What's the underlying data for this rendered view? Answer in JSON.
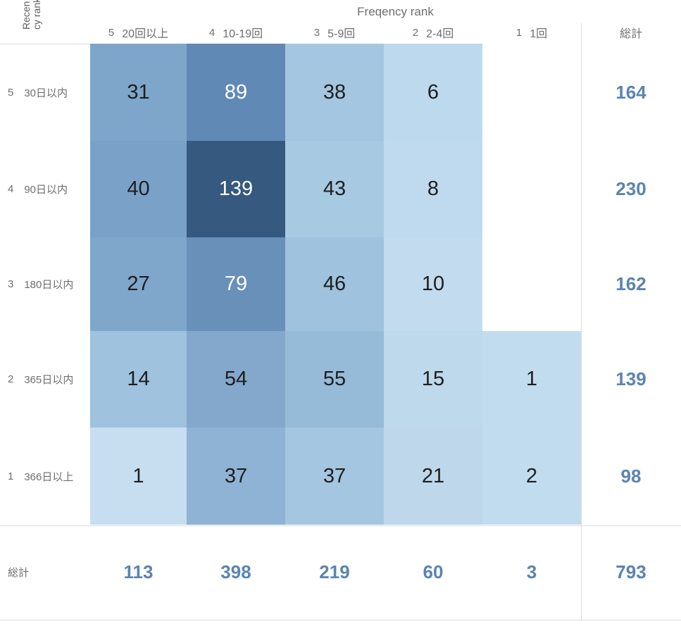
{
  "chart_data": {
    "type": "heatmap",
    "title": "Freqency rank",
    "row_axis_label": "Recency rank",
    "totals_label": "総計",
    "legend_position": "none",
    "grid": false,
    "columns": [
      {
        "rank": "5",
        "label": "20回以上"
      },
      {
        "rank": "4",
        "label": "10-19回"
      },
      {
        "rank": "3",
        "label": "5-9回"
      },
      {
        "rank": "2",
        "label": "2-4回"
      },
      {
        "rank": "1",
        "label": "1回"
      }
    ],
    "rows": [
      {
        "rank": "5",
        "label": "30日以内",
        "cells": [
          {
            "v": 31,
            "c": "#7ea6cb"
          },
          {
            "v": 89,
            "c": "#6089b6"
          },
          {
            "v": 38,
            "c": "#a4c6e1"
          },
          {
            "v": 6,
            "c": "#bcd9ee"
          },
          null
        ],
        "total": 164
      },
      {
        "rank": "4",
        "label": "90日以内",
        "cells": [
          {
            "v": 40,
            "c": "#7aa2c8"
          },
          {
            "v": 139,
            "c": "#35597f"
          },
          {
            "v": 43,
            "c": "#a8c9e2"
          },
          {
            "v": 8,
            "c": "#bfdaee"
          },
          null
        ],
        "total": 230
      },
      {
        "rank": "3",
        "label": "180日以内",
        "cells": [
          {
            "v": 27,
            "c": "#7fa6cb"
          },
          {
            "v": 79,
            "c": "#6890b9"
          },
          {
            "v": 46,
            "c": "#9fc2de"
          },
          {
            "v": 10,
            "c": "#c2dbee"
          },
          null
        ],
        "total": 162
      },
      {
        "rank": "2",
        "label": "365日以内",
        "cells": [
          {
            "v": 14,
            "c": "#9fc2de"
          },
          {
            "v": 54,
            "c": "#84a8cc"
          },
          {
            "v": 55,
            "c": "#96bbd9"
          },
          {
            "v": 15,
            "c": "#bed8ec"
          },
          {
            "v": 1,
            "c": "#c2dcef"
          }
        ],
        "total": 139
      },
      {
        "rank": "1",
        "label": "366日以上",
        "cells": [
          {
            "v": 1,
            "c": "#c6def0"
          },
          {
            "v": 37,
            "c": "#8fb3d5"
          },
          {
            "v": 37,
            "c": "#a5c6e1"
          },
          {
            "v": 21,
            "c": "#bed7eb"
          },
          {
            "v": 2,
            "c": "#c2dcef"
          }
        ],
        "total": 98
      }
    ],
    "col_totals": [
      113,
      398,
      219,
      60,
      3
    ],
    "grand_total": 793,
    "colors": {
      "total_text": "#5a84b2",
      "cell_text_dark": "#1e1e1e",
      "cell_text_light": "#ffffff",
      "label_text": "#6e6e6e",
      "separator": "#dcdcdc"
    }
  }
}
